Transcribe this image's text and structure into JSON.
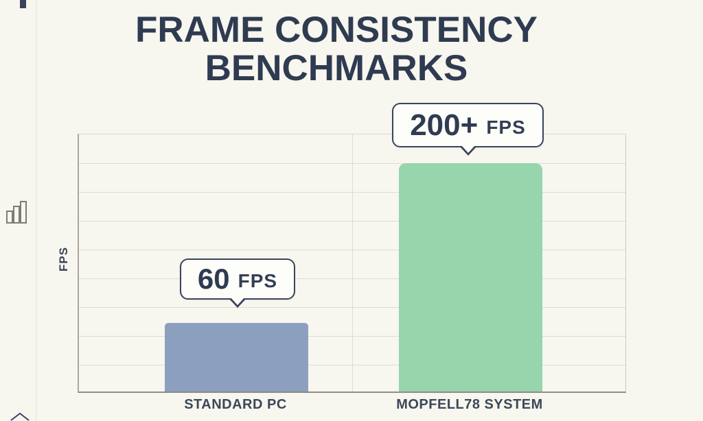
{
  "page": {
    "background": "#f7f6ef",
    "text_color": "#2f3b50"
  },
  "title": {
    "line1": "FRAME CONSISTENCY",
    "line2": "BENCHMARKS"
  },
  "chart_data": {
    "type": "bar",
    "title": "Frame Consistency Benchmarks",
    "categories": [
      "STANDARD PC",
      "MOPFELL78 SYSTEM"
    ],
    "values": [
      60,
      200
    ],
    "value_labels": [
      "60 FPS",
      "200+ FPS"
    ],
    "xlabel": "",
    "ylabel": "FPS",
    "ylim": [
      0,
      227
    ],
    "grid": true,
    "gridline_intervals": 9,
    "legend": "none",
    "bar_colors": [
      "#8c9fbf",
      "#97d5ad"
    ]
  },
  "callouts": [
    {
      "value": "60",
      "unit": "FPS"
    },
    {
      "value": "200+",
      "unit": "FPS"
    }
  ],
  "icons": {
    "bar_chart": "bar-chart-icon",
    "chevron_up": "chevron-up-icon",
    "corner_mark": "corner-mark"
  }
}
